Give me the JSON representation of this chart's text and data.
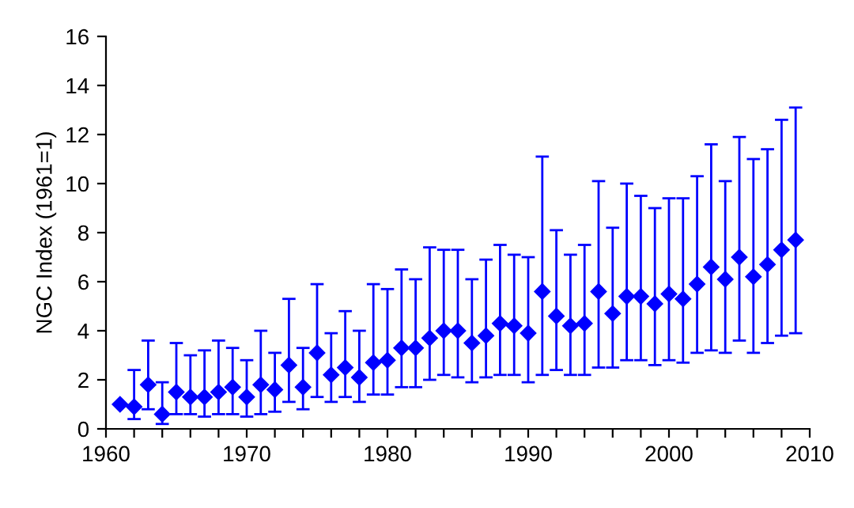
{
  "chart_data": {
    "type": "scatter",
    "ylabel": "NGC Index (1961=1)",
    "marker": "diamond",
    "grid": false,
    "legend": false,
    "x": [
      1961,
      1962,
      1963,
      1964,
      1965,
      1966,
      1967,
      1968,
      1969,
      1970,
      1971,
      1972,
      1973,
      1974,
      1975,
      1976,
      1977,
      1978,
      1979,
      1980,
      1981,
      1982,
      1983,
      1984,
      1985,
      1986,
      1987,
      1988,
      1989,
      1990,
      1991,
      1992,
      1993,
      1994,
      1995,
      1996,
      1997,
      1998,
      1999,
      2000,
      2001,
      2002,
      2003,
      2004,
      2005,
      2006,
      2007,
      2008,
      2009
    ],
    "series": [
      {
        "color": "#0000ff",
        "values": [
          1.0,
          0.9,
          1.8,
          0.6,
          1.5,
          1.3,
          1.3,
          1.5,
          1.7,
          1.3,
          1.8,
          1.6,
          2.6,
          1.7,
          3.1,
          2.2,
          2.5,
          2.1,
          2.7,
          2.8,
          3.3,
          3.3,
          3.7,
          4.0,
          4.0,
          3.5,
          3.8,
          4.3,
          4.2,
          3.9,
          5.6,
          4.6,
          4.2,
          4.3,
          5.6,
          4.7,
          5.4,
          5.4,
          5.1,
          5.5,
          5.3,
          5.9,
          6.6,
          6.1,
          7.0,
          6.2,
          6.7,
          7.3,
          7.7
        ],
        "errors": [
          null,
          [
            0.4,
            2.4
          ],
          [
            0.8,
            3.6
          ],
          [
            0.2,
            1.9
          ],
          [
            0.6,
            3.5
          ],
          [
            0.6,
            3.0
          ],
          [
            0.5,
            3.2
          ],
          [
            0.6,
            3.6
          ],
          [
            0.6,
            3.3
          ],
          [
            0.5,
            2.8
          ],
          [
            0.6,
            4.0
          ],
          [
            0.7,
            3.1
          ],
          [
            1.1,
            5.3
          ],
          [
            0.8,
            3.3
          ],
          [
            1.3,
            5.9
          ],
          [
            1.1,
            3.9
          ],
          [
            1.3,
            4.8
          ],
          [
            1.1,
            4.0
          ],
          [
            1.4,
            5.9
          ],
          [
            1.4,
            5.7
          ],
          [
            1.7,
            6.5
          ],
          [
            1.7,
            6.1
          ],
          [
            2.0,
            7.4
          ],
          [
            2.2,
            7.3
          ],
          [
            2.1,
            7.3
          ],
          [
            1.9,
            6.1
          ],
          [
            2.1,
            6.9
          ],
          [
            2.2,
            7.5
          ],
          [
            2.2,
            7.1
          ],
          [
            1.9,
            7.0
          ],
          [
            2.2,
            11.1
          ],
          [
            2.4,
            8.1
          ],
          [
            2.2,
            7.1
          ],
          [
            2.2,
            7.5
          ],
          [
            2.5,
            10.1
          ],
          [
            2.5,
            8.2
          ],
          [
            2.8,
            10.0
          ],
          [
            2.8,
            9.5
          ],
          [
            2.6,
            9.0
          ],
          [
            2.8,
            9.4
          ],
          [
            2.7,
            9.4
          ],
          [
            3.1,
            10.3
          ],
          [
            3.2,
            11.6
          ],
          [
            3.1,
            10.1
          ],
          [
            3.6,
            11.9
          ],
          [
            3.1,
            11.0
          ],
          [
            3.5,
            11.4
          ],
          [
            3.8,
            12.6
          ],
          [
            3.9,
            13.1
          ]
        ]
      }
    ],
    "xlim": [
      1960,
      2010
    ],
    "ylim": [
      0,
      16
    ],
    "yticks": [
      0,
      2,
      4,
      6,
      8,
      10,
      12,
      14,
      16
    ],
    "xticks": [
      1960,
      {
        "value": 1962,
        "label": null
      },
      {
        "value": 1964,
        "label": null
      },
      {
        "value": 1966,
        "label": null
      },
      {
        "value": 1968,
        "label": null
      },
      1970,
      {
        "value": 1972,
        "label": null
      },
      {
        "value": 1974,
        "label": null
      },
      {
        "value": 1976,
        "label": null
      },
      {
        "value": 1978,
        "label": null
      },
      1980,
      {
        "value": 1982,
        "label": null
      },
      {
        "value": 1984,
        "label": null
      },
      {
        "value": 1986,
        "label": null
      },
      {
        "value": 1988,
        "label": null
      },
      1990,
      {
        "value": 1992,
        "label": null
      },
      {
        "value": 1994,
        "label": null
      },
      {
        "value": 1996,
        "label": null
      },
      {
        "value": 1998,
        "label": null
      },
      2000,
      {
        "value": 2002,
        "label": null
      },
      {
        "value": 2004,
        "label": null
      },
      {
        "value": 2006,
        "label": null
      },
      {
        "value": 2008,
        "label": null
      },
      2010
    ]
  }
}
